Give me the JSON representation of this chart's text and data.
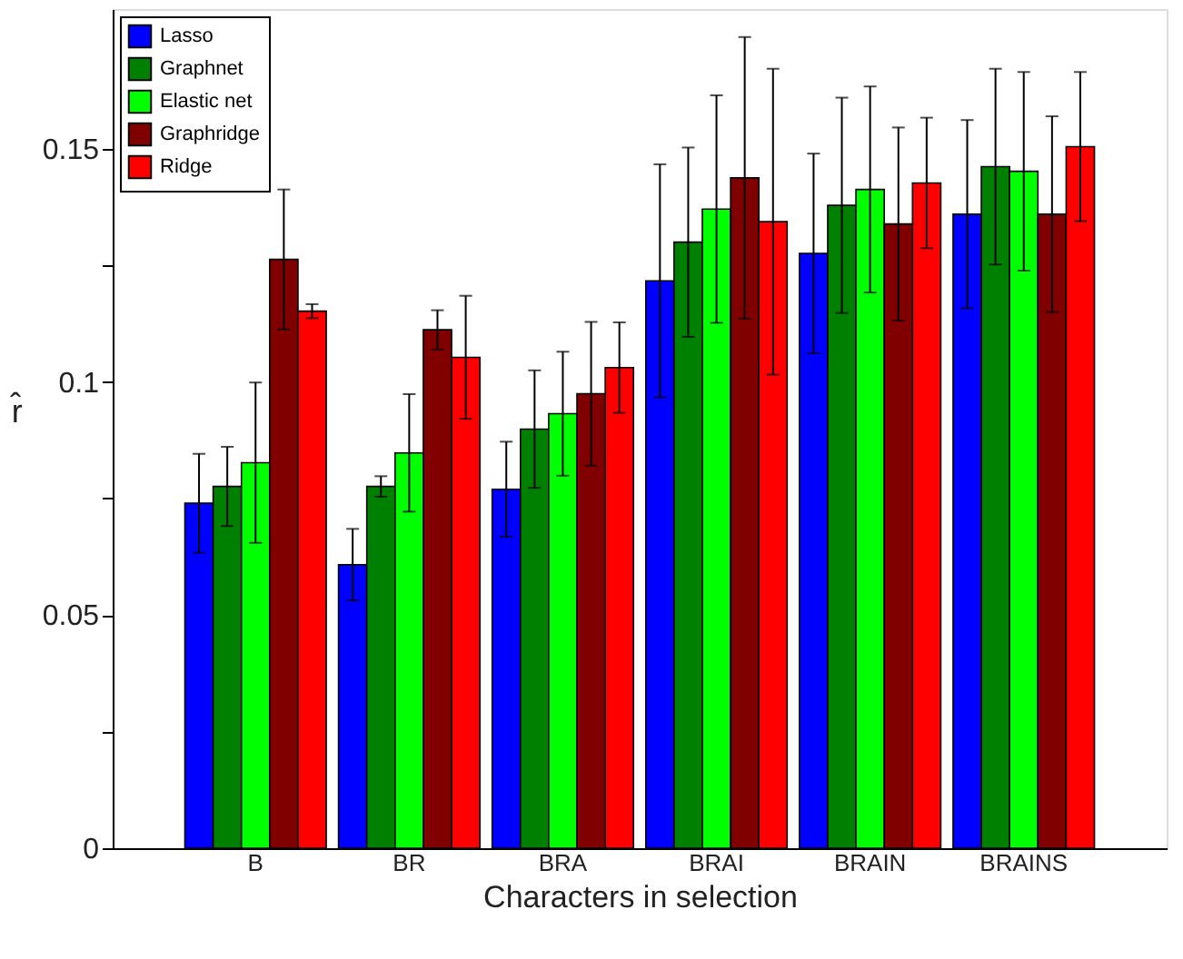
{
  "chart_data": {
    "type": "bar",
    "xlabel": "Characters in selection",
    "ylabel": "r̂",
    "categories": [
      "B",
      "BR",
      "BRA",
      "BRAI",
      "BRAIN",
      "BRAINS"
    ],
    "series": [
      {
        "name": "Lasso",
        "color": "#0000ff",
        "values": [
          0.074,
          0.0608,
          0.077,
          0.1217,
          0.1276,
          0.136
        ],
        "errors": [
          0.0106,
          0.0077,
          0.0102,
          0.025,
          0.0214,
          0.0202
        ]
      },
      {
        "name": "Graphnet",
        "color": "#008000",
        "values": [
          0.0776,
          0.0776,
          0.0899,
          0.13,
          0.1379,
          0.1462
        ],
        "errors": [
          0.0085,
          0.0022,
          0.0126,
          0.0203,
          0.0231,
          0.021
        ]
      },
      {
        "name": "Elastic net",
        "color": "#00ff00",
        "values": [
          0.0827,
          0.0848,
          0.0932,
          0.1371,
          0.1413,
          0.1452
        ],
        "errors": [
          0.0172,
          0.0126,
          0.0133,
          0.0244,
          0.0221,
          0.0213
        ]
      },
      {
        "name": "Graphridge",
        "color": "#800000",
        "values": [
          0.1263,
          0.1112,
          0.0975,
          0.1438,
          0.1339,
          0.136
        ],
        "errors": [
          0.015,
          0.0042,
          0.0154,
          0.0302,
          0.0207,
          0.021
        ]
      },
      {
        "name": "Ridge",
        "color": "#ff0000",
        "values": [
          0.1152,
          0.1053,
          0.1031,
          0.1344,
          0.1427,
          0.1505
        ],
        "errors": [
          0.0015,
          0.0132,
          0.0097,
          0.0328,
          0.014,
          0.016
        ]
      }
    ],
    "ylim": [
      0,
      0.18
    ],
    "yticks": [
      0,
      {
        "value": 0.025,
        "label": null
      },
      0.05,
      {
        "value": 0.075,
        "label": null
      },
      0.1,
      {
        "value": 0.125,
        "label": null
      },
      0.15
    ],
    "legend": "top left",
    "grid": false
  }
}
